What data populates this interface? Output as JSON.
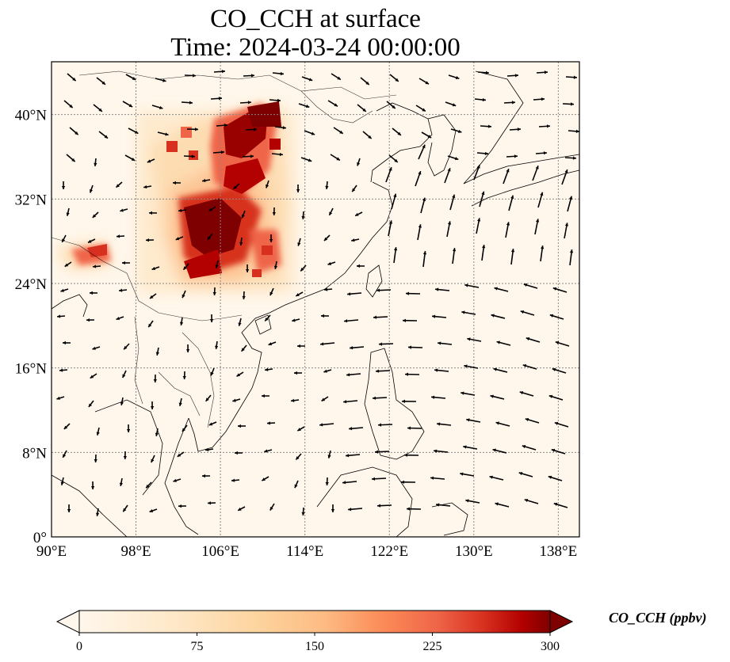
{
  "title": {
    "line1": "CO_CCH at surface",
    "line2": "Time: 2024-03-24 00:00:00"
  },
  "axes": {
    "lon_ticks": [
      "90°E",
      "98°E",
      "106°E",
      "114°E",
      "122°E",
      "130°E",
      "138°E"
    ],
    "lat_ticks": [
      "0°",
      "8°N",
      "16°N",
      "24°N",
      "32°N",
      "40°N"
    ],
    "lon_values": [
      90,
      98,
      106,
      114,
      122,
      130,
      138
    ],
    "lat_values": [
      0,
      8,
      16,
      24,
      32,
      40
    ],
    "lon_range": [
      90,
      140
    ],
    "lat_range": [
      0,
      45
    ],
    "gridlines": true
  },
  "colorbar": {
    "label": "CO_CCH (ppbv)",
    "ticks": [
      "0",
      "75",
      "150",
      "225",
      "300"
    ],
    "tick_values": [
      0,
      75,
      150,
      225,
      300
    ],
    "range": [
      0,
      300
    ],
    "colormap": "OrRd",
    "extend": "both",
    "colors": [
      "#fff7ec",
      "#fdd49e",
      "#fc8d59",
      "#d7301f",
      "#7f0000"
    ]
  },
  "plume": [
    {
      "lon": 105,
      "lat": 29,
      "value": 300
    },
    {
      "lon": 107,
      "lat": 33,
      "value": 260
    },
    {
      "lon": 108,
      "lat": 38,
      "value": 220
    },
    {
      "lon": 110,
      "lat": 41,
      "value": 240
    },
    {
      "lon": 103.5,
      "lat": 25.5,
      "value": 230
    },
    {
      "lon": 110,
      "lat": 26.5,
      "value": 170
    },
    {
      "lon": 94,
      "lat": 26.5,
      "value": 140
    }
  ]
}
